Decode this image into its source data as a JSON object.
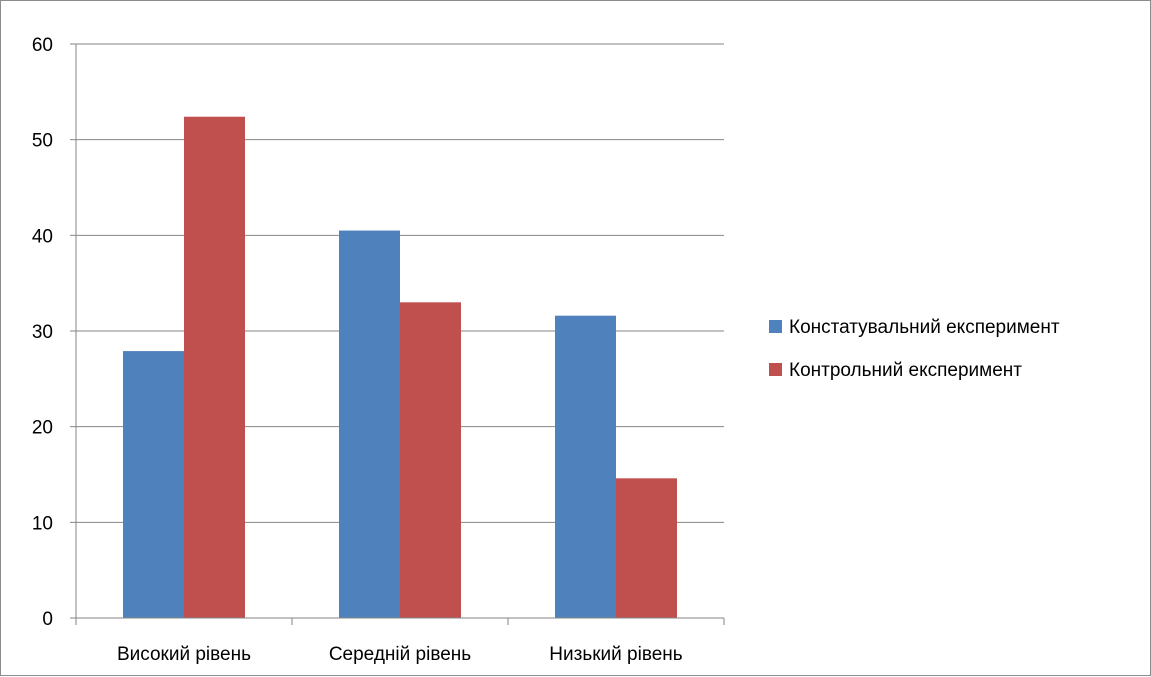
{
  "chart_data": {
    "type": "bar",
    "title": "",
    "xlabel": "",
    "ylabel": "",
    "categories": [
      "Високий рівень",
      "Середній рівень",
      "Низький рівень"
    ],
    "series": [
      {
        "name": "Констатувальний експеримент",
        "color": "#4F81BD",
        "values": [
          27.9,
          40.5,
          31.6
        ]
      },
      {
        "name": "Контрольний експеримент",
        "color": "#C0504D",
        "values": [
          52.4,
          33.0,
          14.6
        ]
      }
    ],
    "ylim": [
      0,
      60
    ],
    "yticks": [
      0,
      10,
      20,
      30,
      40,
      50,
      60
    ],
    "grid": true,
    "legend_position": "right"
  }
}
